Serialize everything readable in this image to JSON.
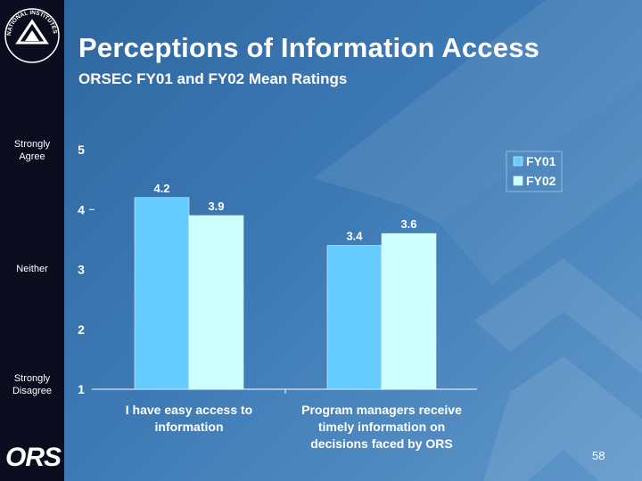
{
  "slide": {
    "title": "Perceptions of Information Access",
    "subtitle": "ORSEC FY01 and FY02 Mean Ratings",
    "page_number": "58",
    "logo_text": "ORS",
    "seal_text": "NATIONAL INSTITUTES OF HEALTH"
  },
  "scale_labels": {
    "top": "Strongly Agree",
    "middle": "Neither",
    "bottom": "Strongly Disagree"
  },
  "colors": {
    "fy01": "#66ccff",
    "fy02": "#ccffff",
    "background": "#3d7ab5",
    "sidebar": "#0b0d1e"
  },
  "chart_data": {
    "type": "bar",
    "title": "Perceptions of Information Access",
    "subtitle": "ORSEC FY01 and FY02 Mean Ratings",
    "categories": [
      [
        "I have easy access to",
        "information"
      ],
      [
        "Program managers receive",
        "timely  information on",
        "decisions faced by ORS"
      ]
    ],
    "series": [
      {
        "name": "FY01",
        "values": [
          4.2,
          3.4
        ],
        "labels": [
          "4.2",
          "3.4"
        ]
      },
      {
        "name": "FY02",
        "values": [
          3.9,
          3.6
        ],
        "labels": [
          "3.9",
          "3.6"
        ]
      }
    ],
    "yticks": [
      "1",
      "2",
      "3",
      "4",
      "5"
    ],
    "ylim": [
      1,
      5
    ],
    "grid": false,
    "legend_position": "top-right"
  }
}
